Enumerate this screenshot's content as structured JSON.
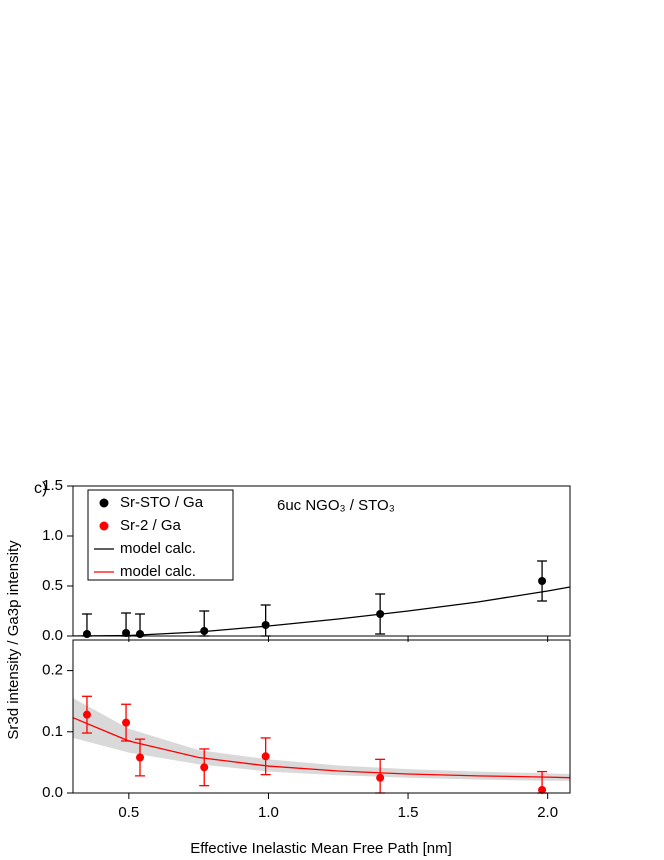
{
  "chart_data": [
    {
      "type": "scatter",
      "panel_label": "c)",
      "annotation": "6uc NGO₃ / STO₃",
      "ylabel": "Sr3d intensity / Ga3p intensity",
      "legend": "upper left",
      "xlim": [
        0.3,
        2.08
      ],
      "ylim": [
        0,
        1.5
      ],
      "yticks": [
        {
          "value": 0,
          "label": "0.0"
        },
        0.5,
        {
          "value": 1,
          "label": "1.0"
        },
        1.5
      ],
      "series": [
        {
          "name": "Sr-STO / Ga",
          "color": "#000000",
          "mode": "markers",
          "x": [
            0.35,
            0.49,
            0.54,
            0.77,
            0.99,
            1.4,
            1.98
          ],
          "values": [
            0.02,
            0.03,
            0.02,
            0.05,
            0.11,
            0.22,
            0.55
          ],
          "errors": [
            0.2,
            0.2,
            0.2,
            0.2,
            0.2,
            0.2,
            0.2
          ]
        },
        {
          "name": "model calc.",
          "color": "#000000",
          "mode": "line",
          "x": [
            0.3,
            0.5,
            0.75,
            1.0,
            1.25,
            1.5,
            1.75,
            2.0,
            2.08
          ],
          "values": [
            0,
            0.005,
            0.04,
            0.1,
            0.17,
            0.25,
            0.34,
            0.45,
            0.49
          ]
        }
      ]
    },
    {
      "type": "scatter",
      "xlabel": "Effective Inelastic Mean Free Path [nm]",
      "xlim": [
        0.3,
        2.08
      ],
      "xticks": [
        0.5,
        {
          "value": 1,
          "label": "1.0"
        },
        1.5,
        {
          "value": 2,
          "label": "2.0"
        }
      ],
      "ylim": [
        0,
        0.25
      ],
      "yticks": [
        {
          "value": 0,
          "label": "0.0"
        },
        0.1,
        0.2
      ],
      "series": [
        {
          "name": "Sr-2 / Ga",
          "color": "#ff0000",
          "mode": "markers",
          "x": [
            0.35,
            0.49,
            0.54,
            0.77,
            0.99,
            1.4,
            1.98
          ],
          "values": [
            0.128,
            0.115,
            0.058,
            0.042,
            0.06,
            0.025,
            0.005
          ],
          "errors": [
            0.03,
            0.03,
            0.03,
            0.03,
            0.03,
            0.03,
            0.03
          ]
        },
        {
          "name": "model calc.",
          "color": "#ff0000",
          "mode": "line",
          "x": [
            0.3,
            0.5,
            0.75,
            1.0,
            1.25,
            1.5,
            1.75,
            2.0,
            2.08
          ],
          "values": [
            0.123,
            0.085,
            0.058,
            0.044,
            0.036,
            0.031,
            0.028,
            0.026,
            0.025
          ],
          "band": {
            "color": "#d9d9d9",
            "lower": [
              0.09,
              0.066,
              0.047,
              0.035,
              0.029,
              0.025,
              0.022,
              0.02,
              0.02
            ],
            "upper": [
              0.155,
              0.105,
              0.07,
              0.055,
              0.045,
              0.039,
              0.035,
              0.032,
              0.031
            ]
          }
        }
      ]
    }
  ]
}
